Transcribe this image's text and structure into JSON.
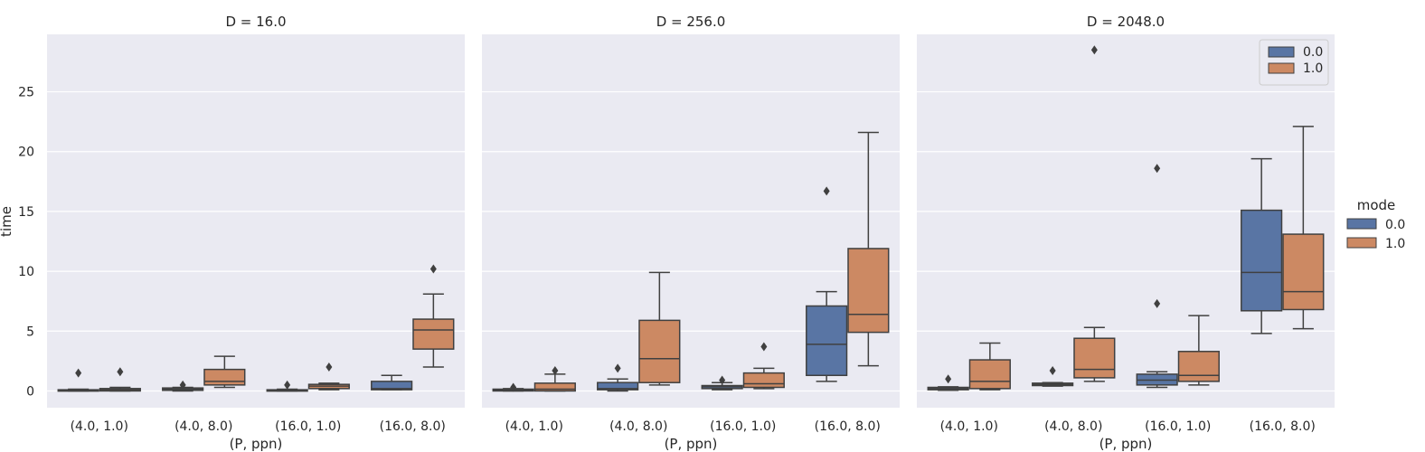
{
  "chart_data": {
    "type": "box",
    "ylabel": "time",
    "xlabel": "(P, ppn)",
    "ylim": [
      -1.4,
      29.8
    ],
    "yticks": [
      0,
      5,
      10,
      15,
      20,
      25
    ],
    "categories": [
      "(4.0, 1.0)",
      "(4.0, 8.0)",
      "(16.0, 1.0)",
      "(16.0, 8.0)"
    ],
    "hue_title": "mode",
    "hue_levels": [
      "0.0",
      "1.0"
    ],
    "colors": {
      "0.0": "#5975a4",
      "1.0": "#cc8963",
      "background": "#eaeaf2",
      "line": "#404040"
    },
    "panels": [
      {
        "title": "D = 16.0",
        "boxes": [
          {
            "category": "(4.0, 1.0)",
            "mode": "0.0",
            "q1": 0.0,
            "median": 0.05,
            "q3": 0.1,
            "whisker_low": 0.0,
            "whisker_high": 0.15,
            "outliers": [
              1.5
            ]
          },
          {
            "category": "(4.0, 1.0)",
            "mode": "1.0",
            "q1": 0.0,
            "median": 0.1,
            "q3": 0.2,
            "whisker_low": 0.0,
            "whisker_high": 0.3,
            "outliers": [
              1.6
            ]
          },
          {
            "category": "(4.0, 8.0)",
            "mode": "0.0",
            "q1": 0.05,
            "median": 0.15,
            "q3": 0.25,
            "whisker_low": 0.0,
            "whisker_high": 0.3,
            "outliers": [
              0.5
            ]
          },
          {
            "category": "(4.0, 8.0)",
            "mode": "1.0",
            "q1": 0.5,
            "median": 0.8,
            "q3": 1.8,
            "whisker_low": 0.3,
            "whisker_high": 2.9,
            "outliers": []
          },
          {
            "category": "(16.0, 1.0)",
            "mode": "0.0",
            "q1": 0.0,
            "median": 0.05,
            "q3": 0.1,
            "whisker_low": 0.0,
            "whisker_high": 0.15,
            "outliers": [
              0.5
            ]
          },
          {
            "category": "(16.0, 1.0)",
            "mode": "1.0",
            "q1": 0.2,
            "median": 0.4,
            "q3": 0.55,
            "whisker_low": 0.1,
            "whisker_high": 0.65,
            "outliers": [
              2.0
            ]
          },
          {
            "category": "(16.0, 8.0)",
            "mode": "0.0",
            "q1": 0.1,
            "median": 0.2,
            "q3": 0.8,
            "whisker_low": 0.1,
            "whisker_high": 1.3,
            "outliers": []
          },
          {
            "category": "(16.0, 8.0)",
            "mode": "1.0",
            "q1": 3.5,
            "median": 5.1,
            "q3": 6.0,
            "whisker_low": 2.0,
            "whisker_high": 8.1,
            "outliers": [
              10.2
            ]
          }
        ]
      },
      {
        "title": "D = 256.0",
        "boxes": [
          {
            "category": "(4.0, 1.0)",
            "mode": "0.0",
            "q1": 0.0,
            "median": 0.05,
            "q3": 0.15,
            "whisker_low": 0.0,
            "whisker_high": 0.2,
            "outliers": [
              0.3
            ]
          },
          {
            "category": "(4.0, 1.0)",
            "mode": "1.0",
            "q1": 0.0,
            "median": 0.15,
            "q3": 0.65,
            "whisker_low": 0.0,
            "whisker_high": 1.4,
            "outliers": [
              1.7
            ]
          },
          {
            "category": "(4.0, 8.0)",
            "mode": "0.0",
            "q1": 0.1,
            "median": 0.2,
            "q3": 0.7,
            "whisker_low": 0.0,
            "whisker_high": 1.0,
            "outliers": [
              1.9
            ]
          },
          {
            "category": "(4.0, 8.0)",
            "mode": "1.0",
            "q1": 0.7,
            "median": 2.7,
            "q3": 5.9,
            "whisker_low": 0.5,
            "whisker_high": 9.9,
            "outliers": []
          },
          {
            "category": "(16.0, 1.0)",
            "mode": "0.0",
            "q1": 0.2,
            "median": 0.35,
            "q3": 0.45,
            "whisker_low": 0.1,
            "whisker_high": 0.7,
            "outliers": [
              0.9
            ]
          },
          {
            "category": "(16.0, 1.0)",
            "mode": "1.0",
            "q1": 0.3,
            "median": 0.6,
            "q3": 1.5,
            "whisker_low": 0.2,
            "whisker_high": 1.9,
            "outliers": [
              3.7
            ]
          },
          {
            "category": "(16.0, 8.0)",
            "mode": "0.0",
            "q1": 1.3,
            "median": 3.9,
            "q3": 7.1,
            "whisker_low": 0.8,
            "whisker_high": 8.3,
            "outliers": [
              16.7
            ]
          },
          {
            "category": "(16.0, 8.0)",
            "mode": "1.0",
            "q1": 4.9,
            "median": 6.4,
            "q3": 11.9,
            "whisker_low": 2.1,
            "whisker_high": 21.6,
            "outliers": []
          }
        ]
      },
      {
        "title": "D = 2048.0",
        "boxes": [
          {
            "category": "(4.0, 1.0)",
            "mode": "0.0",
            "q1": 0.1,
            "median": 0.2,
            "q3": 0.3,
            "whisker_low": 0.05,
            "whisker_high": 0.35,
            "outliers": [
              1.0
            ]
          },
          {
            "category": "(4.0, 1.0)",
            "mode": "1.0",
            "q1": 0.2,
            "median": 0.8,
            "q3": 2.6,
            "whisker_low": 0.1,
            "whisker_high": 4.0,
            "outliers": []
          },
          {
            "category": "(4.0, 8.0)",
            "mode": "0.0",
            "q1": 0.45,
            "median": 0.55,
            "q3": 0.65,
            "whisker_low": 0.4,
            "whisker_high": 0.7,
            "outliers": [
              1.7
            ]
          },
          {
            "category": "(4.0, 8.0)",
            "mode": "1.0",
            "q1": 1.1,
            "median": 1.8,
            "q3": 4.4,
            "whisker_low": 0.8,
            "whisker_high": 5.3,
            "outliers": [
              28.5
            ]
          },
          {
            "category": "(16.0, 1.0)",
            "mode": "0.0",
            "q1": 0.5,
            "median": 0.9,
            "q3": 1.4,
            "whisker_low": 0.3,
            "whisker_high": 1.6,
            "outliers": [
              7.3,
              18.6
            ]
          },
          {
            "category": "(16.0, 1.0)",
            "mode": "1.0",
            "q1": 0.8,
            "median": 1.3,
            "q3": 3.3,
            "whisker_low": 0.5,
            "whisker_high": 6.3,
            "outliers": []
          },
          {
            "category": "(16.0, 8.0)",
            "mode": "0.0",
            "q1": 6.7,
            "median": 9.9,
            "q3": 15.1,
            "whisker_low": 4.8,
            "whisker_high": 19.4,
            "outliers": []
          },
          {
            "category": "(16.0, 8.0)",
            "mode": "1.0",
            "q1": 6.8,
            "median": 8.3,
            "q3": 13.1,
            "whisker_low": 5.2,
            "whisker_high": 22.1,
            "outliers": []
          }
        ]
      }
    ],
    "inner_legend": {
      "panel": 2,
      "placement": "upper-right",
      "entries": [
        "0.0",
        "1.0"
      ]
    },
    "outer_legend": {
      "placement": "right",
      "title": "mode",
      "entries": [
        "0.0",
        "1.0"
      ]
    }
  }
}
